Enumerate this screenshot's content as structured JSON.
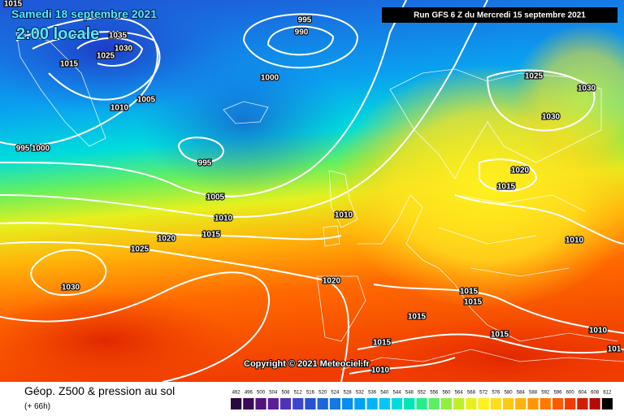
{
  "header": {
    "date": "Samedi 18 septembre 2021",
    "time": "2:00 locale",
    "run": "Run GFS 6 Z du Mercredi 15 septembre 2021"
  },
  "copyright": "Copyright © 2021 Meteociel.fr",
  "footer": {
    "title": "Géop. Z500 & pression au sol",
    "lead": "(+ 66h)"
  },
  "isobar_labels": [
    "1015",
    "995",
    "990",
    "1035",
    "1030",
    "1025",
    "1015",
    "1010",
    "1005",
    "1000",
    "995",
    "1000",
    "995",
    "1005",
    "1010",
    "1015",
    "1020",
    "1025",
    "1030",
    "1025",
    "1030",
    "1030",
    "1020",
    "1015",
    "1010",
    "1010",
    "1020",
    "1015",
    "1015",
    "1015",
    "1015",
    "1015",
    "1010",
    "1010",
    "101"
  ],
  "scale": {
    "labels": [
      "492",
      "496",
      "500",
      "504",
      "508",
      "512",
      "516",
      "520",
      "524",
      "528",
      "532",
      "536",
      "540",
      "544",
      "548",
      "552",
      "556",
      "560",
      "564",
      "568",
      "572",
      "576",
      "580",
      "584",
      "588",
      "592",
      "596",
      "600",
      "604",
      "608",
      "612"
    ],
    "colors": [
      "#2a0a3c",
      "#3c0a5a",
      "#50147a",
      "#5a1e96",
      "#5032b4",
      "#3c46c8",
      "#2850d2",
      "#1e64dc",
      "#1478e6",
      "#0a8cf0",
      "#00a0f5",
      "#00b4f5",
      "#00c8f0",
      "#00dcdc",
      "#00e6b4",
      "#28ec8c",
      "#5af064",
      "#8cf03c",
      "#bef028",
      "#e6f01e",
      "#fff01e",
      "#ffdc1e",
      "#ffc814",
      "#ffb40a",
      "#ff9600",
      "#ff7800",
      "#ff5a00",
      "#f03c00",
      "#d21e00",
      "#b40a0a",
      "#000000"
    ]
  }
}
